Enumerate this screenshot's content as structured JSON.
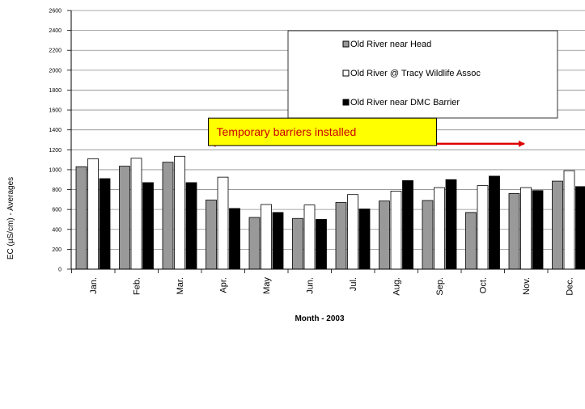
{
  "chart_data": {
    "type": "bar",
    "xlabel": "Month - 2003",
    "ylabel": "EC (µS/cm) - Averages",
    "ylim": [
      0,
      2600
    ],
    "yticks": [
      0,
      200,
      400,
      600,
      800,
      1000,
      1200,
      1400,
      1600,
      1800,
      2000,
      2200,
      2400,
      2600
    ],
    "grid": true,
    "legend_position": "top-right",
    "categories": [
      "Jan.",
      "Feb.",
      "Mar.",
      "Apr.",
      "May",
      "Jun.",
      "Jul.",
      "Aug.",
      "Sep.",
      "Oct.",
      "Nov.",
      "Dec."
    ],
    "series": [
      {
        "name": "Old River near Head",
        "color": "#999999",
        "values": [
          1030,
          1035,
          1075,
          695,
          520,
          510,
          670,
          685,
          690,
          570,
          760,
          885
        ]
      },
      {
        "name": "Old River @ Tracy Wildlife Assoc",
        "color": "#ffffff",
        "values": [
          1110,
          1115,
          1135,
          925,
          650,
          645,
          750,
          785,
          820,
          840,
          820,
          990
        ]
      },
      {
        "name": "Old River near DMC Barrier",
        "color": "#000000",
        "values": [
          910,
          870,
          870,
          610,
          570,
          500,
          605,
          890,
          900,
          935,
          790,
          830
        ]
      }
    ],
    "annotation": {
      "text": "Temporary barriers installed",
      "box_color": "#ffff00",
      "text_color": "#cc0000",
      "arrow_color": "#dd0000",
      "arrow_from": "Apr.",
      "arrow_to": "Nov.",
      "arrow_y": 1260,
      "box_y": 1380,
      "box_center": 5.3
    }
  }
}
